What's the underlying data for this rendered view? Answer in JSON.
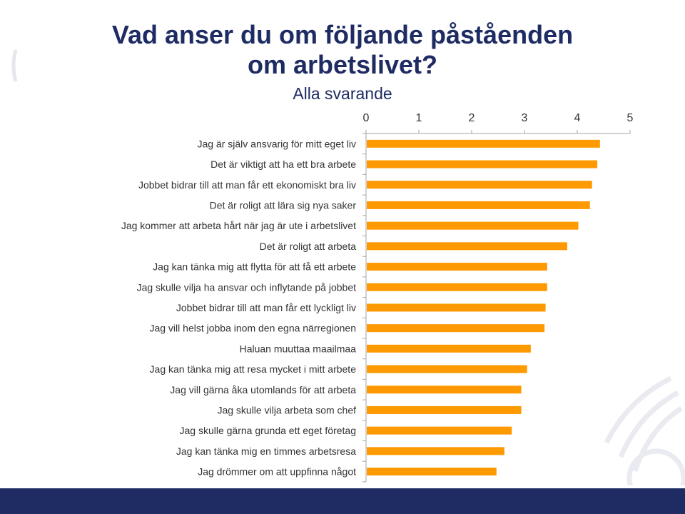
{
  "title": {
    "line1": "Vad anser du om följande påståenden",
    "line2": "om arbetslivet?"
  },
  "subtitle": "Alla svarande",
  "chart_data": {
    "type": "bar",
    "orientation": "horizontal",
    "categories": [
      "Jag är själv ansvarig för mitt eget liv",
      "Det är viktigt att ha ett bra arbete",
      "Jobbet bidrar till att man får ett ekonomiskt bra liv",
      "Det är roligt att lära sig nya saker",
      "Jag kommer att arbeta hårt när jag är ute i arbetslivet",
      "Det är roligt att arbeta",
      "Jag kan tänka mig att flytta för att få ett arbete",
      "Jag skulle vilja ha ansvar och inflytande på jobbet",
      "Jobbet bidrar till att man får ett lyckligt liv",
      "Jag vill helst jobba inom den egna närregionen",
      "Haluan muuttaa maailmaa",
      "Jag kan tänka mig att resa mycket i mitt arbete",
      "Jag vill gärna åka utomlands för att arbeta",
      "Jag skulle vilja arbeta som chef",
      "Jag skulle gärna grunda ett eget företag",
      "Jag kan tänka mig en timmes arbetsresa",
      "Jag drömmer om att uppfinna något"
    ],
    "values": [
      4.43,
      4.38,
      4.28,
      4.24,
      4.02,
      3.81,
      3.43,
      3.43,
      3.4,
      3.38,
      3.12,
      3.05,
      2.94,
      2.94,
      2.76,
      2.62,
      2.47
    ],
    "xlim": [
      0,
      5
    ],
    "xticks": [
      "0",
      "1",
      "2",
      "3",
      "4",
      "5"
    ],
    "axis_position": "top",
    "grid": false,
    "legend": "none",
    "bar_color": "#ff9900"
  },
  "colors": {
    "title": "#1f2c63",
    "footer": "#1f2c63",
    "axis": "#a6a6a6"
  }
}
